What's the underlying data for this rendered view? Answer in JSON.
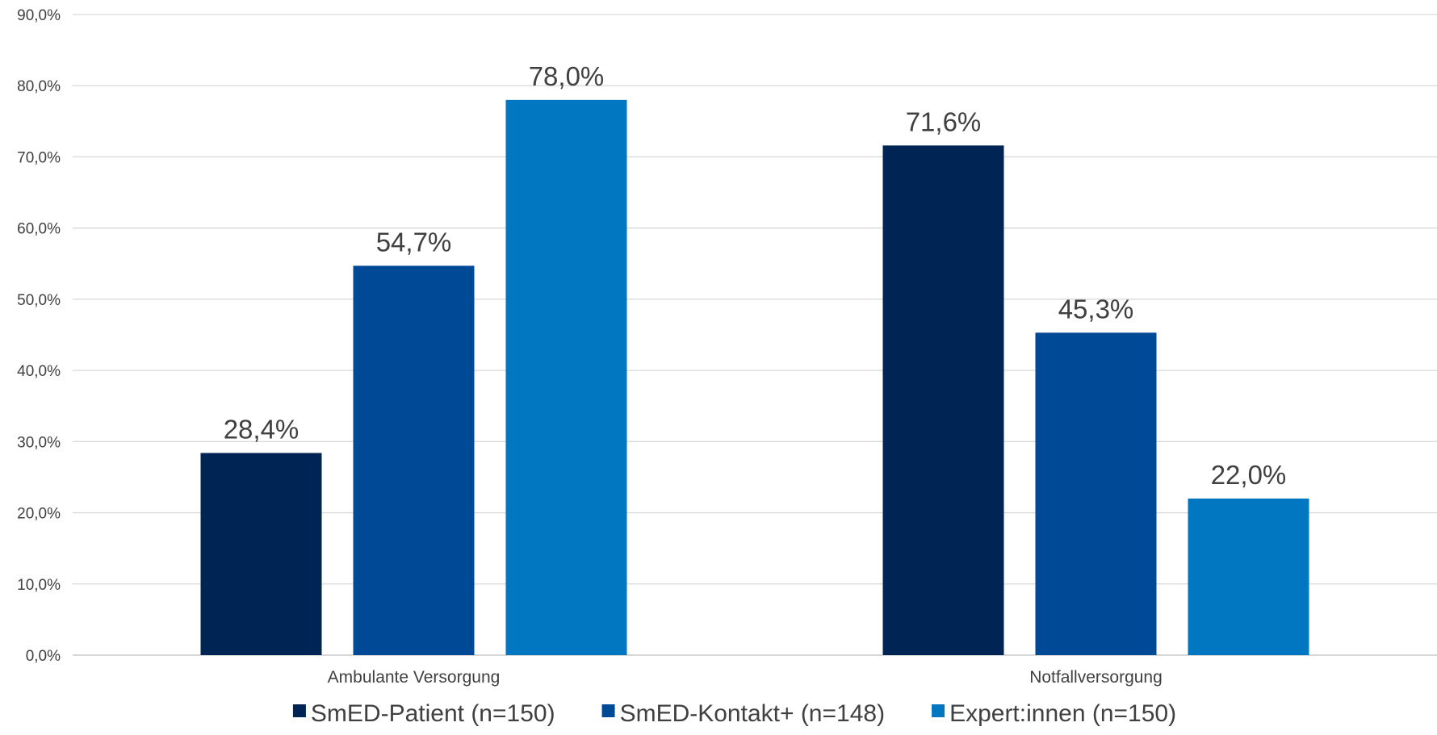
{
  "chart_data": {
    "type": "bar",
    "title": "",
    "xlabel": "",
    "ylabel": "",
    "ylim": [
      0,
      90
    ],
    "yticks": [
      0,
      10,
      20,
      30,
      40,
      50,
      60,
      70,
      80,
      90
    ],
    "ytick_labels": [
      "0,0%",
      "10,0%",
      "20,0%",
      "30,0%",
      "40,0%",
      "50,0%",
      "60,0%",
      "70,0%",
      "80,0%",
      "90,0%"
    ],
    "grid": true,
    "legend_position": "bottom",
    "categories": [
      "Ambulante Versorgung",
      "Notfallversorgung"
    ],
    "series": [
      {
        "name": "SmED-Patient (n=150)",
        "color": "#002554",
        "values": [
          28.4,
          71.6
        ],
        "labels": [
          "28,4%",
          "71,6%"
        ]
      },
      {
        "name": "SmED-Kontakt+ (n=148)",
        "color": "#004996",
        "values": [
          54.7,
          45.3
        ],
        "labels": [
          "54,7%",
          "45,3%"
        ]
      },
      {
        "name": "Expert:innen (n=150)",
        "color": "#0077C0",
        "values": [
          78.0,
          22.0
        ],
        "labels": [
          "78,0%",
          "22,0%"
        ]
      }
    ]
  }
}
